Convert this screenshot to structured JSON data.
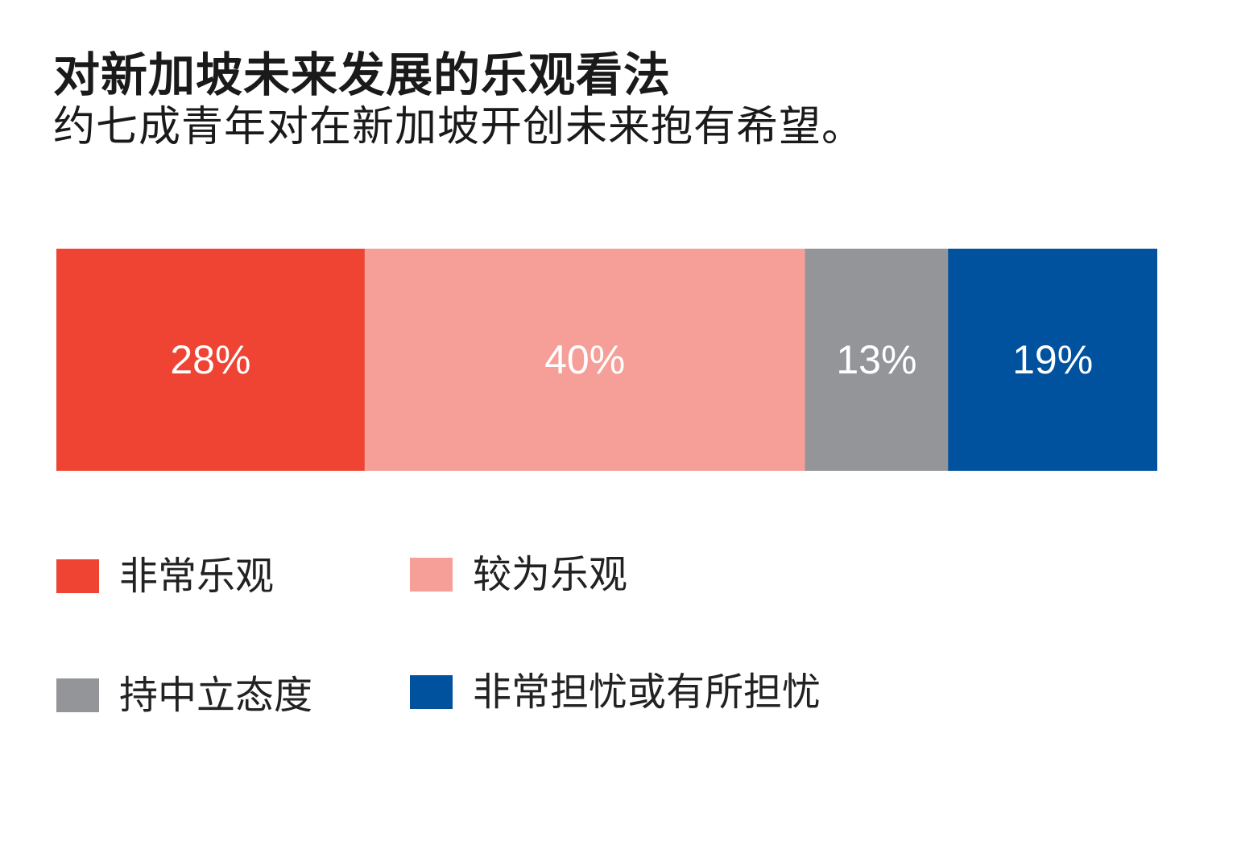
{
  "title": "对新加坡未来发展的乐观看法",
  "subtitle": "约七成青年对在新加坡开创未来抱有希望。",
  "chart_data": {
    "type": "bar",
    "orientation": "horizontal-stacked-100",
    "series": [
      {
        "name": "非常乐观",
        "value": 28,
        "label": "28%",
        "color": "#ef4433",
        "label_color": "#ffffff"
      },
      {
        "name": "较为乐观",
        "value": 40,
        "label": "40%",
        "color": "#f59f98",
        "label_color": "#ffffff"
      },
      {
        "name": "持中立态度",
        "value": 13,
        "label": "13%",
        "color": "#949599",
        "label_color": "#ffffff"
      },
      {
        "name": "非常担忧或有所担忧",
        "value": 19,
        "label": "19%",
        "color": "#00519e",
        "label_color": "#ffffff"
      }
    ],
    "xlim": [
      0,
      100
    ],
    "grid": false,
    "legend_position": "bottom"
  },
  "legend": {
    "items": [
      {
        "label": "非常乐观",
        "color": "#ef4433"
      },
      {
        "label": "较为乐观",
        "color": "#f59f98"
      },
      {
        "label": "持中立态度",
        "color": "#949599"
      },
      {
        "label": "非常担忧或有所担忧",
        "color": "#00519e"
      }
    ]
  }
}
